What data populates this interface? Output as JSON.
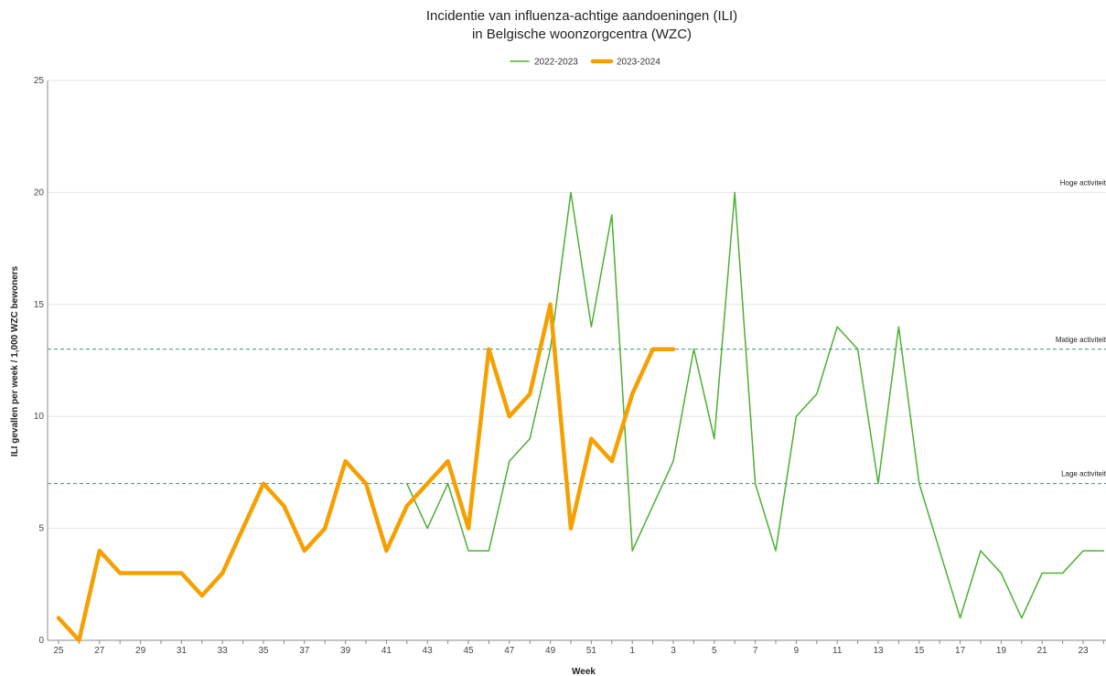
{
  "chart_data": {
    "type": "line",
    "title_line1": "Incidentie van influenza-achtige aandoeningen (ILI)",
    "title_line2": "in Belgische woonzorgcentra (WZC)",
    "xlabel": "Week",
    "ylabel": "ILI gevallen per week / 1,000 WZC bewoners",
    "ylim": [
      0,
      25
    ],
    "yticks": [
      0,
      5,
      10,
      15,
      20,
      25
    ],
    "legend_position": "top-center",
    "categories": [
      25,
      26,
      27,
      28,
      29,
      30,
      31,
      32,
      33,
      34,
      35,
      36,
      37,
      38,
      39,
      40,
      41,
      42,
      43,
      44,
      45,
      46,
      47,
      48,
      49,
      50,
      51,
      52,
      1,
      2,
      3,
      4,
      5,
      6,
      7,
      8,
      9,
      10,
      11,
      12,
      13,
      14,
      15,
      16,
      17,
      18,
      19,
      20,
      21,
      22,
      23,
      24
    ],
    "xtick_labels": [
      25,
      27,
      29,
      31,
      33,
      35,
      37,
      39,
      41,
      43,
      45,
      47,
      49,
      51,
      1,
      3,
      5,
      7,
      9,
      11,
      13,
      15,
      17,
      19,
      21,
      23
    ],
    "series": [
      {
        "name": "2022-2023",
        "color": "#4caf32",
        "values": [
          null,
          null,
          null,
          null,
          null,
          null,
          null,
          null,
          null,
          null,
          null,
          null,
          null,
          null,
          null,
          null,
          null,
          7,
          5,
          7,
          4,
          4,
          8,
          9,
          13,
          20,
          14,
          19,
          4,
          6,
          8,
          13,
          9,
          20,
          7,
          4,
          10,
          11,
          14,
          13,
          7,
          14,
          7,
          4,
          1,
          4,
          3,
          1,
          3,
          3,
          4,
          4
        ]
      },
      {
        "name": "2023-2024",
        "color": "#f5a000",
        "values": [
          1,
          0,
          4,
          3,
          3,
          3,
          3,
          2,
          3,
          5,
          7,
          6,
          4,
          5,
          8,
          7,
          4,
          6,
          7,
          8,
          5,
          13,
          10,
          11,
          15,
          5,
          9,
          8,
          11,
          13,
          13,
          null,
          null,
          null,
          null,
          null,
          null,
          null,
          null,
          null,
          null,
          null,
          null,
          null,
          null,
          null,
          null,
          null,
          null,
          null,
          null,
          null
        ]
      }
    ],
    "reference_lines": [
      {
        "label": "Hoge activiteit",
        "value": 20,
        "style": "none"
      },
      {
        "label": "Matige activiteit",
        "value": 13,
        "style": "dashed"
      },
      {
        "label": "Lage activiteit",
        "value": 7,
        "style": "dashed"
      }
    ],
    "grid": true
  }
}
